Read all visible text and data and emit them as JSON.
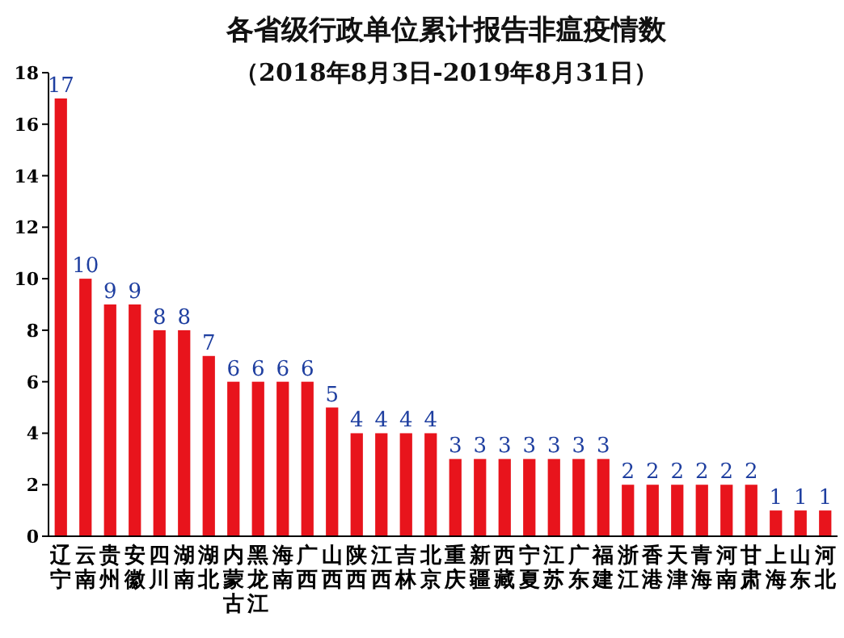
{
  "chart_data": {
    "type": "bar",
    "title": "各省级行政单位累计报告非瘟疫情数",
    "subtitle": "（2018年8月3日-2019年8月31日）",
    "categories": [
      "辽宁",
      "云南",
      "贵州",
      "安徽",
      "四川",
      "湖南",
      "湖北",
      "内蒙古",
      "黑龙江",
      "海南",
      "广西",
      "山西",
      "陕西",
      "江西",
      "吉林",
      "北京",
      "重庆",
      "新疆",
      "西藏",
      "宁夏",
      "江苏",
      "广东",
      "福建",
      "浙江",
      "香港",
      "天津",
      "青海",
      "河南",
      "甘肃",
      "上海",
      "山东",
      "河北"
    ],
    "values": [
      17,
      10,
      9,
      9,
      8,
      8,
      7,
      6,
      6,
      6,
      6,
      5,
      4,
      4,
      4,
      4,
      3,
      3,
      3,
      3,
      3,
      3,
      3,
      2,
      2,
      2,
      2,
      2,
      2,
      1,
      1,
      1
    ],
    "color": "#e8141c",
    "ylim": [
      0,
      18
    ],
    "yticks": [
      0,
      2,
      4,
      6,
      8,
      10,
      12,
      14,
      16,
      18
    ],
    "data_labels": true
  }
}
